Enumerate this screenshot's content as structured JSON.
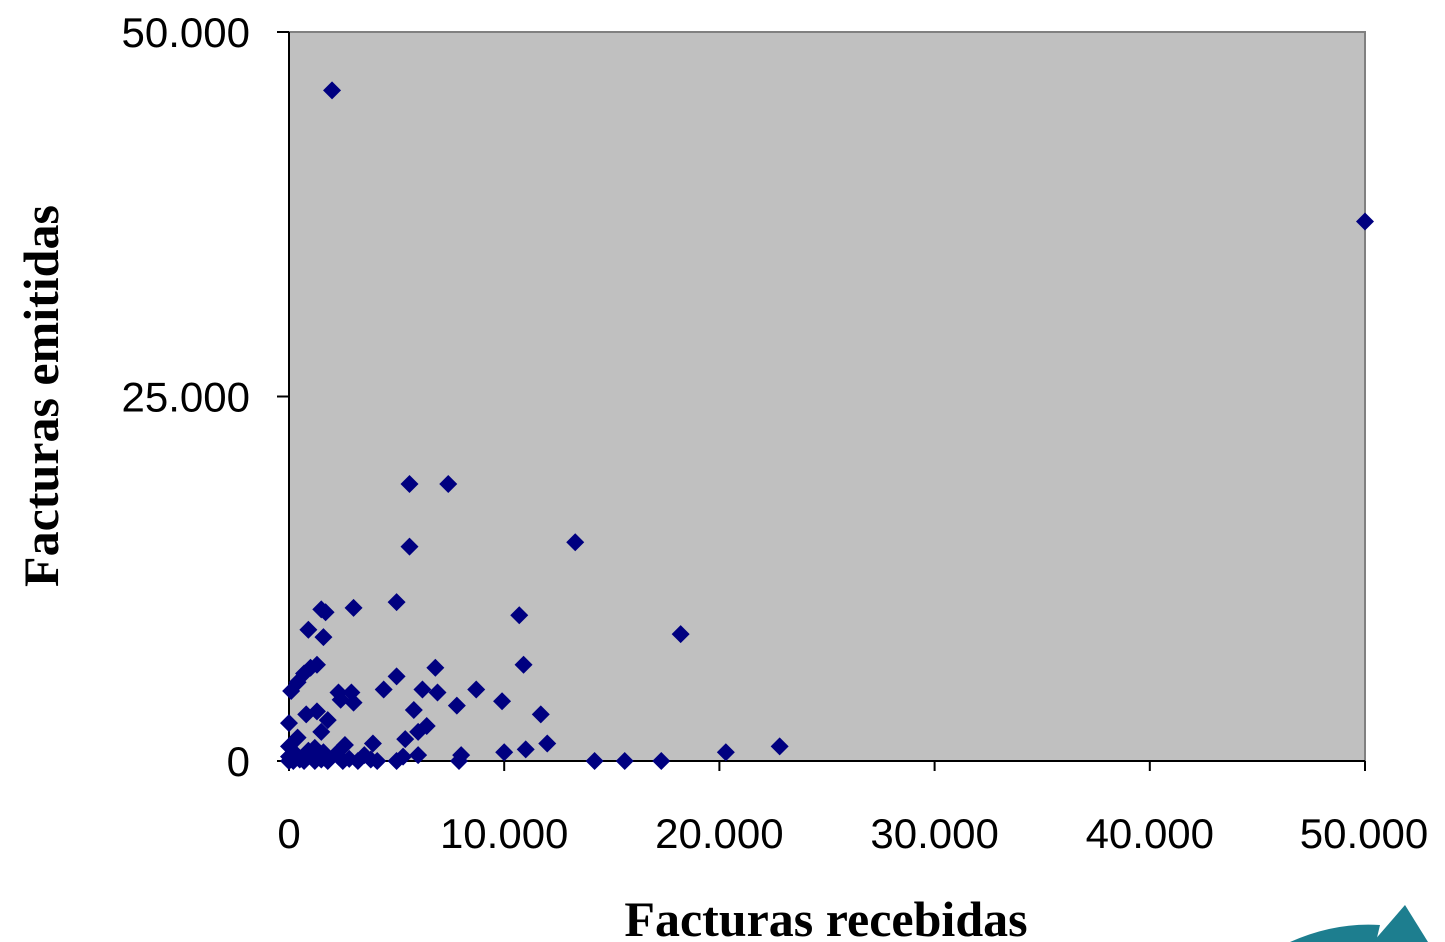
{
  "chart_data": {
    "type": "scatter",
    "title": "",
    "xlabel": "Facturas recebidas",
    "ylabel": "Facturas emitidas",
    "xlim": [
      0,
      50000
    ],
    "ylim": [
      0,
      50000
    ],
    "x_ticks": [
      {
        "value": 0,
        "label": "0"
      },
      {
        "value": 10000,
        "label": "10.000"
      },
      {
        "value": 20000,
        "label": "20.000"
      },
      {
        "value": 30000,
        "label": "30.000"
      },
      {
        "value": 40000,
        "label": "40.000"
      },
      {
        "value": 50000,
        "label": "50.000"
      }
    ],
    "y_ticks": [
      {
        "value": 0,
        "label": "0"
      },
      {
        "value": 25000,
        "label": "25.000"
      },
      {
        "value": 50000,
        "label": "50.000"
      }
    ],
    "grid": false,
    "legend": "none",
    "colors": {
      "plot_background": "#c0c0c0",
      "marker": "#000080",
      "axis": "#808080"
    },
    "marker": "diamond",
    "points": [
      [
        2000,
        46000
      ],
      [
        50000,
        37000
      ],
      [
        5600,
        19000
      ],
      [
        7400,
        19000
      ],
      [
        5600,
        14700
      ],
      [
        13300,
        15000
      ],
      [
        5000,
        10900
      ],
      [
        3000,
        10500
      ],
      [
        1500,
        10400
      ],
      [
        1700,
        10200
      ],
      [
        10700,
        10000
      ],
      [
        900,
        9000
      ],
      [
        1600,
        8500
      ],
      [
        18200,
        8700
      ],
      [
        1300,
        6600
      ],
      [
        1000,
        6400
      ],
      [
        700,
        6000
      ],
      [
        10900,
        6600
      ],
      [
        6800,
        6400
      ],
      [
        5000,
        5800
      ],
      [
        400,
        5400
      ],
      [
        100,
        4800
      ],
      [
        2300,
        4700
      ],
      [
        2900,
        4700
      ],
      [
        4400,
        4900
      ],
      [
        6200,
        4900
      ],
      [
        6900,
        4700
      ],
      [
        8700,
        4900
      ],
      [
        9900,
        4100
      ],
      [
        2400,
        4200
      ],
      [
        3000,
        4000
      ],
      [
        7800,
        3800
      ],
      [
        5800,
        3500
      ],
      [
        11700,
        3200
      ],
      [
        1300,
        3400
      ],
      [
        800,
        3200
      ],
      [
        1800,
        2800
      ],
      [
        0,
        2600
      ],
      [
        6400,
        2400
      ],
      [
        6000,
        2000
      ],
      [
        1500,
        2000
      ],
      [
        400,
        1600
      ],
      [
        5400,
        1500
      ],
      [
        12000,
        1200
      ],
      [
        3900,
        1200
      ],
      [
        2600,
        1100
      ],
      [
        0,
        1000
      ],
      [
        22800,
        1000
      ],
      [
        1200,
        900
      ],
      [
        900,
        700
      ],
      [
        10000,
        600
      ],
      [
        11000,
        800
      ],
      [
        20300,
        600
      ],
      [
        8000,
        400
      ],
      [
        6000,
        400
      ],
      [
        5300,
        300
      ],
      [
        2200,
        500
      ],
      [
        1000,
        400
      ],
      [
        3500,
        400
      ],
      [
        0,
        300
      ],
      [
        500,
        100
      ],
      [
        1500,
        100
      ],
      [
        2800,
        150
      ],
      [
        3800,
        100
      ],
      [
        5000,
        0
      ],
      [
        7900,
        0
      ],
      [
        14200,
        0
      ],
      [
        15600,
        0
      ],
      [
        17300,
        0
      ],
      [
        200,
        0
      ],
      [
        700,
        0
      ],
      [
        1200,
        0
      ],
      [
        1800,
        0
      ],
      [
        2500,
        0
      ],
      [
        3200,
        0
      ],
      [
        4100,
        0
      ],
      [
        0,
        0
      ],
      [
        300,
        500
      ],
      [
        1600,
        600
      ],
      [
        2300,
        300
      ]
    ]
  }
}
